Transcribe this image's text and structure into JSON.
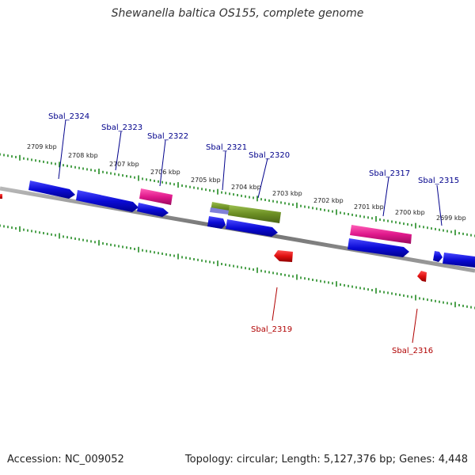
{
  "title": "Shewanella baltica OS155, complete genome",
  "footer": {
    "accession": "Accession: NC_009052",
    "summary": "Topology: circular; Length: 5,127,376 bp; Genes: 4,448"
  },
  "colors": {
    "forward_gene": "#0b0bd6",
    "pink_gene": "#e0198c",
    "olive_gene": "#6b8e23",
    "reverse_gene": "#e01010",
    "ruler_tick": "#228B22",
    "backbone": "#808080",
    "label_forward": "#00008b",
    "label_reverse": "#b00000"
  },
  "kbp_labels": [
    "2709 kbp",
    "2708 kbp",
    "2707 kbp",
    "2706 kbp",
    "2705 kbp",
    "2704 kbp",
    "2703 kbp",
    "2702 kbp",
    "2701 kbp",
    "2700 kbp",
    "2699 kbp"
  ],
  "gene_labels": {
    "Sbal_2324": "Sbal_2324",
    "Sbal_2323": "Sbal_2323",
    "Sbal_2322": "Sbal_2322",
    "Sbal_2321": "Sbal_2321",
    "Sbal_2320": "Sbal_2320",
    "Sbal_2317": "Sbal_2317",
    "Sbal_2315": "Sbal_2315",
    "Sbal_2319": "Sbal_2319",
    "Sbal_2316": "Sbal_2316"
  }
}
